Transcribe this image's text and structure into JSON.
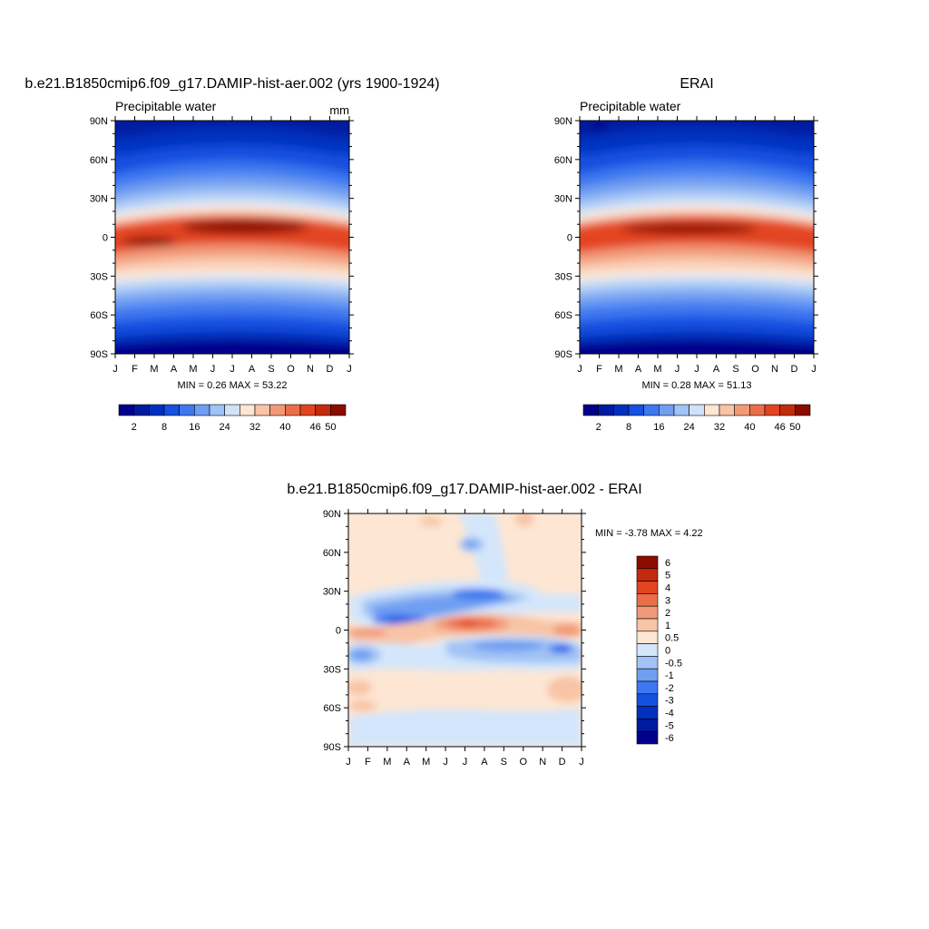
{
  "panels": {
    "model": {
      "title": "b.e21.B1850cmip6.f09_g17.DAMIP-hist-aer.002 (yrs 1900-1924)",
      "left_label": "Precipitable water",
      "units": "mm",
      "stats": "MIN =   0.26 MAX =  53.22"
    },
    "obs": {
      "title": "ERAI",
      "left_label": "Precipitable water",
      "stats": "MIN =   0.28 MAX =  51.13"
    },
    "diff": {
      "title": "b.e21.B1850cmip6.f09_g17.DAMIP-hist-aer.002 - ERAI",
      "stats": "MIN =  -3.78 MAX =   4.22"
    }
  },
  "axes": {
    "lat_ticks": [
      "90N",
      "60N",
      "30N",
      "0",
      "30S",
      "60S",
      "90S"
    ],
    "month_ticks": [
      "J",
      "F",
      "M",
      "A",
      "M",
      "J",
      "J",
      "A",
      "S",
      "O",
      "N",
      "D",
      "J"
    ]
  },
  "colorbars": {
    "field": {
      "colors": [
        "#00008c",
        "#001aa0",
        "#0030c0",
        "#1550e0",
        "#3d78f0",
        "#6f9ef2",
        "#a1c3f5",
        "#d0e2f8",
        "#fde6d3",
        "#f8c4a6",
        "#f29a78",
        "#ec6e48",
        "#e34420",
        "#c42a0c",
        "#8c0c00"
      ],
      "labels": [
        "2",
        "8",
        "16",
        "24",
        "32",
        "40",
        "46",
        "50"
      ],
      "label_boundaries": [
        1,
        3,
        5,
        7,
        9,
        11,
        13,
        14
      ]
    },
    "diff": {
      "colors": [
        "#00008c",
        "#001aa0",
        "#0030c0",
        "#1550e0",
        "#3d78f0",
        "#6f9ef2",
        "#a1c3f5",
        "#d4e6fb",
        "#fde6d3",
        "#f8c4a6",
        "#f29a78",
        "#ec6e48",
        "#e34420",
        "#c42a0c",
        "#8c0c00"
      ],
      "labels": [
        "6",
        "5",
        "4",
        "3",
        "2",
        "1",
        "0.5",
        "0",
        "-0.5",
        "-1",
        "-2",
        "-3",
        "-4",
        "-5",
        "-6"
      ]
    }
  },
  "chart_data": [
    {
      "type": "heatmap",
      "title": "b.e21.B1850cmip6.f09_g17.DAMIP-hist-aer.002 (yrs 1900-1924)",
      "variable": "Precipitable water",
      "units": "mm",
      "x": [
        "J",
        "F",
        "M",
        "A",
        "M",
        "J",
        "J",
        "A",
        "S",
        "O",
        "N",
        "D",
        "J"
      ],
      "y": [
        "90N",
        "60N",
        "30N",
        "0",
        "30S",
        "60S",
        "90S"
      ],
      "min": 0.26,
      "max": 53.22,
      "contour_levels": [
        2,
        4,
        8,
        12,
        16,
        20,
        24,
        28,
        32,
        36,
        40,
        44,
        46,
        48,
        50
      ],
      "ylim": [
        -90,
        90
      ]
    },
    {
      "type": "heatmap",
      "title": "ERAI",
      "variable": "Precipitable water",
      "x": [
        "J",
        "F",
        "M",
        "A",
        "M",
        "J",
        "J",
        "A",
        "S",
        "O",
        "N",
        "D",
        "J"
      ],
      "y": [
        "90N",
        "60N",
        "30N",
        "0",
        "30S",
        "60S",
        "90S"
      ],
      "min": 0.28,
      "max": 51.13,
      "contour_levels": [
        2,
        4,
        8,
        12,
        16,
        20,
        24,
        28,
        32,
        36,
        40,
        44,
        46,
        48,
        50
      ],
      "ylim": [
        -90,
        90
      ]
    },
    {
      "type": "heatmap",
      "title": "b.e21.B1850cmip6.f09_g17.DAMIP-hist-aer.002 - ERAI",
      "x": [
        "J",
        "F",
        "M",
        "A",
        "M",
        "J",
        "J",
        "A",
        "S",
        "O",
        "N",
        "D",
        "J"
      ],
      "y": [
        "90N",
        "60N",
        "30N",
        "0",
        "30S",
        "60S",
        "90S"
      ],
      "min": -3.78,
      "max": 4.22,
      "contour_levels": [
        -6,
        -5,
        -4,
        -3,
        -2,
        -1,
        -0.5,
        0,
        0.5,
        1,
        2,
        3,
        4,
        5,
        6
      ],
      "ylim": [
        -90,
        90
      ]
    }
  ]
}
